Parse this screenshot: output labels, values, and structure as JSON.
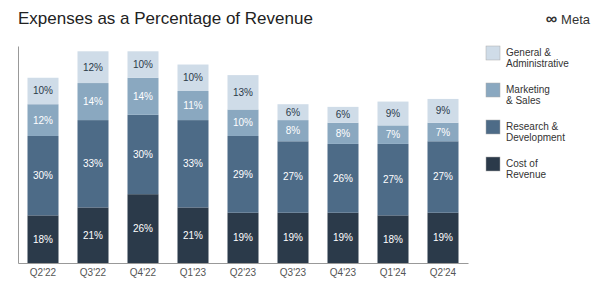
{
  "chart_data": {
    "type": "bar",
    "stacked": true,
    "data_labels": true,
    "title": "Expenses as a Percentage of Revenue",
    "annotations": [
      "∞",
      "Meta"
    ],
    "categories": [
      "Q2'22",
      "Q3'22",
      "Q4'22",
      "Q1'23",
      "Q2'23",
      "Q3'23",
      "Q4'23",
      "Q1'24",
      "Q2'24"
    ],
    "series": [
      {
        "name": "Cost of\nRevenue",
        "color": "#2b3a4a",
        "values": [
          18,
          21,
          26,
          21,
          19,
          19,
          19,
          18,
          19
        ],
        "value_labels": [
          "18%",
          "21%",
          "26%",
          "21%",
          "19%",
          "19%",
          "19%",
          "18%",
          "19%"
        ]
      },
      {
        "name": "Research &\nDevelopment",
        "color": "#4d6b87",
        "values": [
          30,
          33,
          30,
          33,
          29,
          27,
          26,
          27,
          27
        ],
        "value_labels": [
          "30%",
          "33%",
          "30%",
          "33%",
          "29%",
          "27%",
          "26%",
          "27%",
          "27%"
        ]
      },
      {
        "name": "Marketing\n& Sales",
        "color": "#8aa8c0",
        "values": [
          12,
          14,
          14,
          11,
          10,
          8,
          8,
          7,
          7
        ],
        "value_labels": [
          "12%",
          "14%",
          "14%",
          "11%",
          "10%",
          "8%",
          "8%",
          "7%",
          "7%"
        ]
      },
      {
        "name": "General &\nAdministrative",
        "color": "#cfdce8",
        "values": [
          10,
          12,
          10,
          10,
          13,
          6,
          6,
          9,
          9
        ],
        "value_labels": [
          "10%",
          "12%",
          "10%",
          "10%",
          "13%",
          "6%",
          "6%",
          "9%",
          "9%"
        ]
      }
    ],
    "ylim": [
      0,
      82
    ],
    "tick_labels": "x",
    "grid": false,
    "legend": "right"
  }
}
